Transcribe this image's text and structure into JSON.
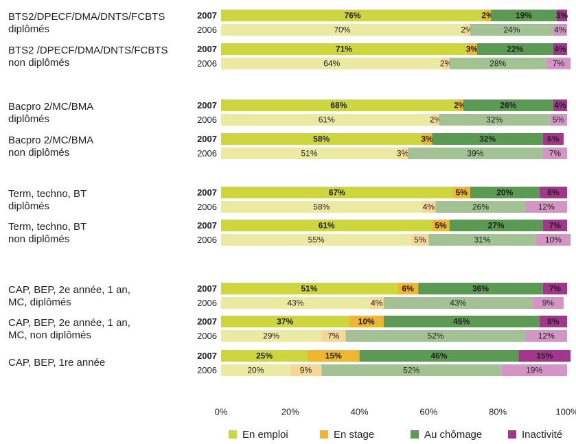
{
  "chart_data": {
    "type": "bar",
    "orientation": "horizontal",
    "stacked": true,
    "groups": [
      {
        "label_lines": [
          "BTS2/DPECF/DMA/DNTS/FCBTS",
          "diplômés"
        ]
      },
      {
        "label_lines": [
          "BTS2 /DPECF/DMA/DNTS/FCBTS",
          "non diplômés"
        ]
      },
      {
        "label_lines": [
          "Bacpro 2/MC/BMA",
          "diplômés"
        ]
      },
      {
        "label_lines": [
          "Bacpro 2/MC/BMA",
          "non diplômés"
        ]
      },
      {
        "label_lines": [
          "Term, techno, BT",
          "diplômés"
        ]
      },
      {
        "label_lines": [
          "Term, techno, BT",
          "non diplômés"
        ]
      },
      {
        "label_lines": [
          "CAP, BEP, 2e année, 1 an,",
          "MC, diplômés"
        ]
      },
      {
        "label_lines": [
          "CAP, BEP, 2e année, 1 an,",
          "MC, non diplômés"
        ]
      },
      {
        "label_lines": [
          "CAP, BEP, 1re année"
        ]
      }
    ],
    "categories": [
      "2007",
      "2006",
      "2007",
      "2006",
      "2007",
      "2006",
      "2007",
      "2006",
      "2007",
      "2006",
      "2007",
      "2006",
      "2007",
      "2006",
      "2007",
      "2006",
      "2007",
      "2006"
    ],
    "series": [
      {
        "name": "En emploi",
        "colors": {
          "2007": "#cdd63c",
          "2006": "#eaeaa2"
        },
        "label_colors": {
          "2007": "#333333",
          "2006": "#333333"
        },
        "values": [
          76,
          70,
          71,
          64,
          68,
          61,
          58,
          51,
          67,
          58,
          61,
          55,
          51,
          43,
          37,
          29,
          25,
          20
        ],
        "value_labels": [
          "76%",
          "70%",
          "71%",
          "64%",
          "68%",
          "61%",
          "58%",
          "51%",
          "67%",
          "58%",
          "61%",
          "55%",
          "51%",
          "43%",
          "37%",
          "29%",
          "25%",
          "20%"
        ]
      },
      {
        "name": "En stage",
        "colors": {
          "2007": "#efb630",
          "2006": "#f5d796"
        },
        "label_colors": {
          "2007": "#333333",
          "2006": "#333333"
        },
        "values": [
          2,
          2,
          3,
          2,
          2,
          2,
          3,
          3,
          5,
          4,
          5,
          5,
          6,
          4,
          10,
          7,
          15,
          9
        ],
        "value_labels": [
          "2%",
          "2%",
          "3%",
          "2%",
          "2%",
          "2%",
          "3%",
          "3%",
          "5%",
          "4%",
          "5%",
          "5%",
          "6%",
          "4%",
          "10%",
          "7%",
          "15%",
          "9%"
        ]
      },
      {
        "name": "Au chômage",
        "colors": {
          "2007": "#5b9a52",
          "2006": "#a3c293"
        },
        "label_colors": {
          "2007": "#ffffff",
          "2006": "#333333"
        },
        "values": [
          19,
          24,
          22,
          28,
          26,
          32,
          32,
          39,
          20,
          26,
          27,
          31,
          36,
          43,
          45,
          52,
          46,
          52
        ],
        "value_labels": [
          "19%",
          "24%",
          "22%",
          "28%",
          "26%",
          "32%",
          "32%",
          "39%",
          "20%",
          "26%",
          "27%",
          "31%",
          "36%",
          "43%",
          "45%",
          "52%",
          "46%",
          "52%"
        ]
      },
      {
        "name": "Inactivité",
        "colors": {
          "2007": "#a2368b",
          "2006": "#d395c3"
        },
        "label_colors": {
          "2007": "#ffffff",
          "2006": "#333333"
        },
        "values": [
          3,
          4,
          4,
          7,
          4,
          5,
          6,
          7,
          8,
          12,
          7,
          10,
          7,
          9,
          8,
          12,
          15,
          19
        ],
        "value_labels": [
          "3%",
          "4%",
          "4%",
          "7%",
          "4%",
          "5%",
          "6%",
          "7%",
          "8%",
          "12%",
          "7%",
          "10%",
          "7%",
          "9%",
          "8%",
          "12%",
          "15%",
          "19%"
        ]
      }
    ],
    "xlim": [
      0,
      100
    ],
    "xticks": [
      {
        "value": 0,
        "label": "0%"
      },
      {
        "value": 20,
        "label": "20%"
      },
      {
        "value": 40,
        "label": "40%"
      },
      {
        "value": 60,
        "label": "60%"
      },
      {
        "value": 80,
        "label": "80%"
      },
      {
        "value": 100,
        "label": "100%"
      }
    ],
    "legend": "bottom"
  }
}
